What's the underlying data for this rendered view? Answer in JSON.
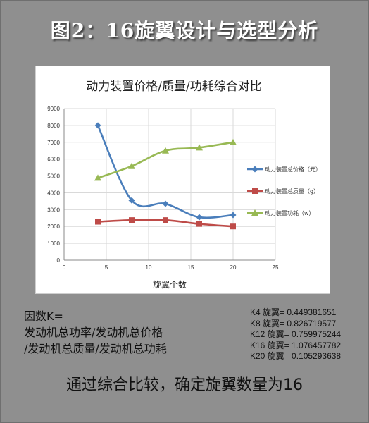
{
  "header": {
    "title": "图2：16旋翼设计与选型分析"
  },
  "chart_data": {
    "type": "line",
    "title": "动力装置价格/质量/功耗综合对比",
    "xlabel": "旋翼个数",
    "ylabel": "",
    "xlim": [
      0,
      25
    ],
    "ylim": [
      0,
      9000
    ],
    "x_ticks": [
      "0",
      "5",
      "10",
      "15",
      "20",
      "25"
    ],
    "y_ticks": [
      "0",
      "1000",
      "2000",
      "3000",
      "4000",
      "5000",
      "6000",
      "7000",
      "8000",
      "9000"
    ],
    "grid": true,
    "legend_position": "right",
    "x": [
      4,
      8,
      12,
      16,
      20
    ],
    "series": [
      {
        "name": "动力装置总价格（元）",
        "color": "#4a7ebb",
        "marker": "diamond",
        "values": [
          8000,
          3550,
          3350,
          2550,
          2680
        ]
      },
      {
        "name": "动力装置总质量（g）",
        "color": "#be4b48",
        "marker": "square",
        "values": [
          2280,
          2380,
          2380,
          2150,
          2000
        ]
      },
      {
        "name": "动力装置功耗（w）",
        "color": "#98b954",
        "marker": "triangle",
        "values": [
          4880,
          5580,
          6500,
          6680,
          7000
        ]
      }
    ]
  },
  "formula": {
    "line1": "因数K=",
    "line2": "发动机总功率/发动机总价格",
    "line3": "/发动机总质量/发动机总功耗"
  },
  "k_values": [
    "K4 旋翼= 0.449381651",
    "K8 旋翼= 0.826719577",
    "K12 旋翼= 0.759975244",
    "K16 旋翼= 1.076457782",
    "K20 旋翼= 0.105293638"
  ],
  "conclusion": "通过综合比较，确定旋翼数量为16"
}
